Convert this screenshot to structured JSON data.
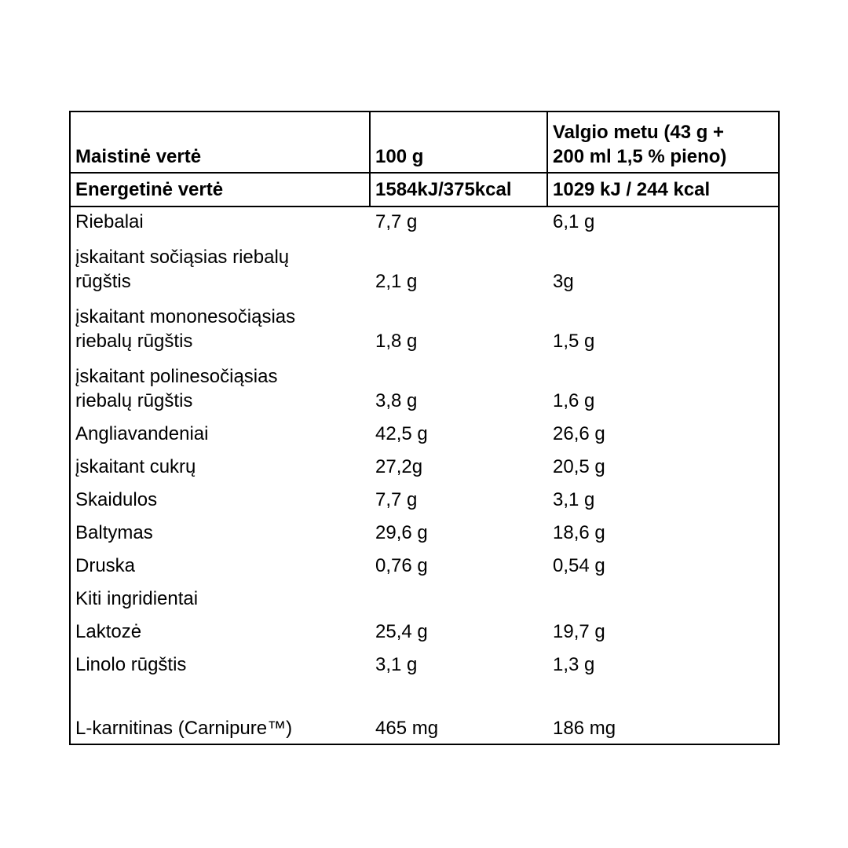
{
  "header": {
    "col1": "Maistinė vertė",
    "col2": "100 g",
    "col3_line1": "Valgio metu (43 g +",
    "col3_line2": "200 ml 1,5 % pieno)"
  },
  "energy": {
    "label": "Energetinė vertė",
    "per100": "1584kJ/375kcal",
    "perServing": "1029 kJ / 244 kcal"
  },
  "rows": [
    {
      "label_line1": "Riebalai",
      "label_line2": "",
      "per100": "7,7 g",
      "perServing": "6,1 g"
    },
    {
      "label_line1": "įskaitant sočiąsias riebalų",
      "label_line2": "rūgštis",
      "per100": "2,1 g",
      "perServing": "3g"
    },
    {
      "label_line1": "įskaitant mononesočiąsias",
      "label_line2": "riebalų rūgštis",
      "per100": "1,8 g",
      "perServing": "1,5 g"
    },
    {
      "label_line1": "įskaitant polinesočiąsias",
      "label_line2": "riebalų rūgštis",
      "per100": "3,8 g",
      "perServing": "1,6 g"
    },
    {
      "label_line1": "Angliavandeniai",
      "label_line2": "",
      "per100": "42,5 g",
      "perServing": "26,6 g"
    },
    {
      "label_line1": "įskaitant cukrų",
      "label_line2": "",
      "per100": "27,2g",
      "perServing": "20,5 g"
    },
    {
      "label_line1": "Skaidulos",
      "label_line2": "",
      "per100": "7,7 g",
      "perServing": "3,1 g"
    },
    {
      "label_line1": "Baltymas",
      "label_line2": "",
      "per100": "29,6 g",
      "perServing": "18,6 g"
    },
    {
      "label_line1": "Druska",
      "label_line2": "",
      "per100": "0,76 g",
      "perServing": "0,54 g"
    },
    {
      "label_line1": "Kiti ingridientai",
      "label_line2": "",
      "per100": "",
      "perServing": ""
    },
    {
      "label_line1": "Laktozė",
      "label_line2": "",
      "per100": "25,4 g",
      "perServing": "19,7 g"
    },
    {
      "label_line1": "Linolo rūgštis",
      "label_line2": "",
      "per100": "3,1 g",
      "perServing": "1,3 g"
    },
    {
      "label_line1": "L-karnitinas (Carnipure™)",
      "label_line2": "",
      "per100": "465 mg",
      "perServing": "186 mg"
    }
  ]
}
